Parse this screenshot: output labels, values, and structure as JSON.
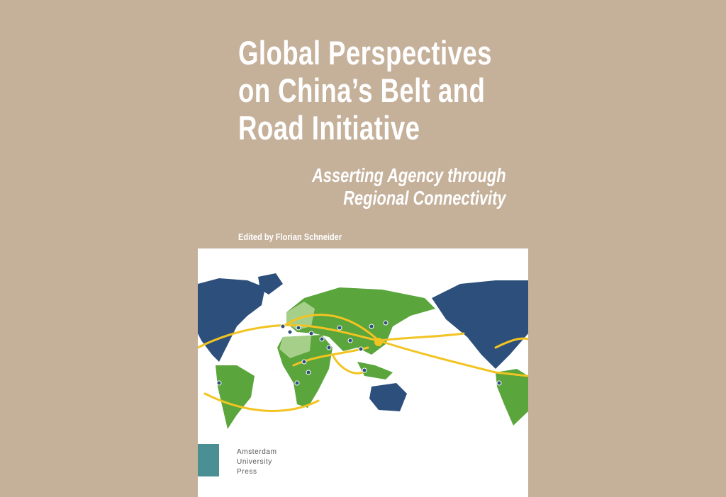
{
  "cover": {
    "title_lines": [
      "Global Perspectives",
      "on China’s Belt and",
      "Road Initiative"
    ],
    "subtitle_lines": [
      "Asserting Agency through",
      "Regional Connectivity"
    ],
    "editor": "Edited by Florian Schneider",
    "publisher_lines": [
      "Amsterdam",
      "University",
      "Press"
    ]
  },
  "colors": {
    "background": "#c5b09a",
    "land_green": "#5aa53c",
    "land_light_green": "#a6cf8a",
    "land_blue": "#2d4f7c",
    "route_yellow": "#f2c422",
    "publisher_teal": "#4a8f94"
  }
}
